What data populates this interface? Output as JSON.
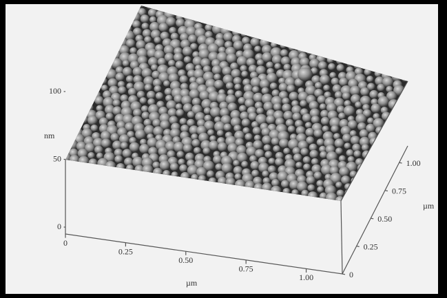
{
  "chart_data": {
    "type": "surface3d",
    "z_label": "nm",
    "x_label": "µm",
    "y_label": "µm",
    "xlim": [
      0,
      1.15
    ],
    "xticks": [
      0,
      0.25,
      {
        "value": 0.5,
        "label": "0.50"
      },
      0.75,
      {
        "value": 1,
        "label": "1.00"
      }
    ],
    "ylim": [
      0,
      1.15
    ],
    "yticks": [
      0,
      0.25,
      {
        "value": 0.5,
        "label": "0.50"
      },
      0.75,
      {
        "value": 1,
        "label": "1.00"
      }
    ],
    "zlim": [
      0,
      100
    ],
    "zticks": [
      0,
      50,
      100
    ]
  }
}
